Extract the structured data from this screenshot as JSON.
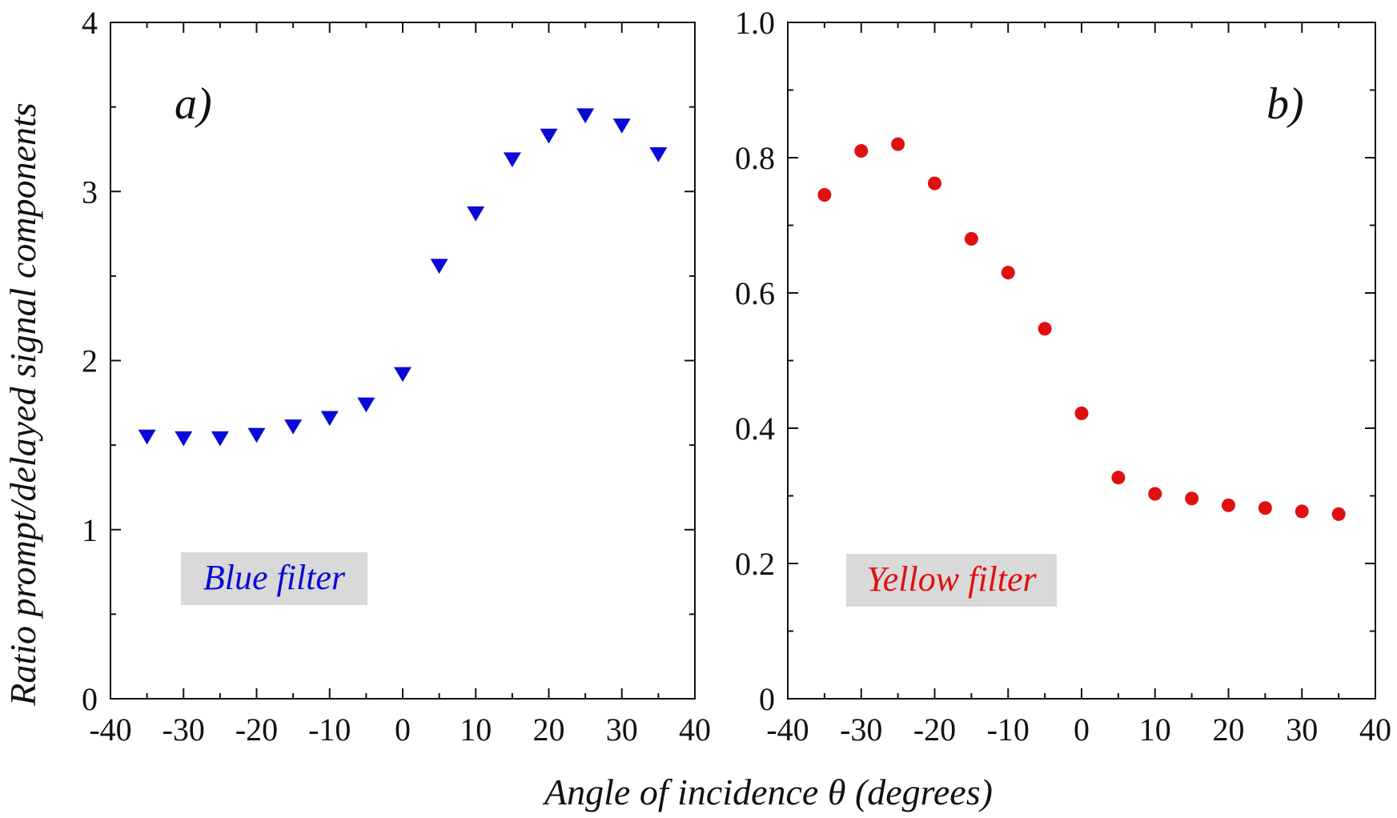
{
  "xlabel": "Angle of incidence θ (degrees)",
  "ylabel": "Ratio prompt/delayed signal components",
  "chart_data": [
    {
      "type": "scatter",
      "panel_label": "a)",
      "legend_label": "Blue filter",
      "marker": "triangle-down",
      "color": "#0a0ad6",
      "xlim": [
        -40,
        40
      ],
      "ylim": [
        0,
        4
      ],
      "xticks": [
        "-40",
        "-30",
        "-20",
        "-10",
        "0",
        "10",
        "20",
        "30",
        "40"
      ],
      "yticks": [
        "0",
        "1",
        "2",
        "3",
        "4"
      ],
      "x": [
        -35,
        -30,
        -25,
        -20,
        -15,
        -10,
        -5,
        0,
        5,
        10,
        15,
        20,
        25,
        30,
        35
      ],
      "y": [
        1.55,
        1.54,
        1.54,
        1.56,
        1.61,
        1.66,
        1.74,
        1.92,
        2.56,
        2.87,
        3.19,
        3.33,
        3.45,
        3.39,
        3.22
      ]
    },
    {
      "type": "scatter",
      "panel_label": "b)",
      "legend_label": "Yellow filter",
      "marker": "circle",
      "color": "#e01010",
      "xlim": [
        -40,
        40
      ],
      "ylim": [
        0,
        1.0
      ],
      "xticks": [
        "-40",
        "-30",
        "-20",
        "-10",
        "0",
        "10",
        "20",
        "30",
        "40"
      ],
      "yticks": [
        "0",
        "0.2",
        "0.4",
        "0.6",
        "0.8",
        "1.0"
      ],
      "x": [
        -35,
        -30,
        -25,
        -20,
        -15,
        -10,
        -5,
        0,
        5,
        10,
        15,
        20,
        25,
        30,
        35
      ],
      "y": [
        0.745,
        0.81,
        0.82,
        0.762,
        0.68,
        0.63,
        0.547,
        0.422,
        0.327,
        0.303,
        0.296,
        0.286,
        0.282,
        0.277,
        0.273
      ]
    }
  ]
}
